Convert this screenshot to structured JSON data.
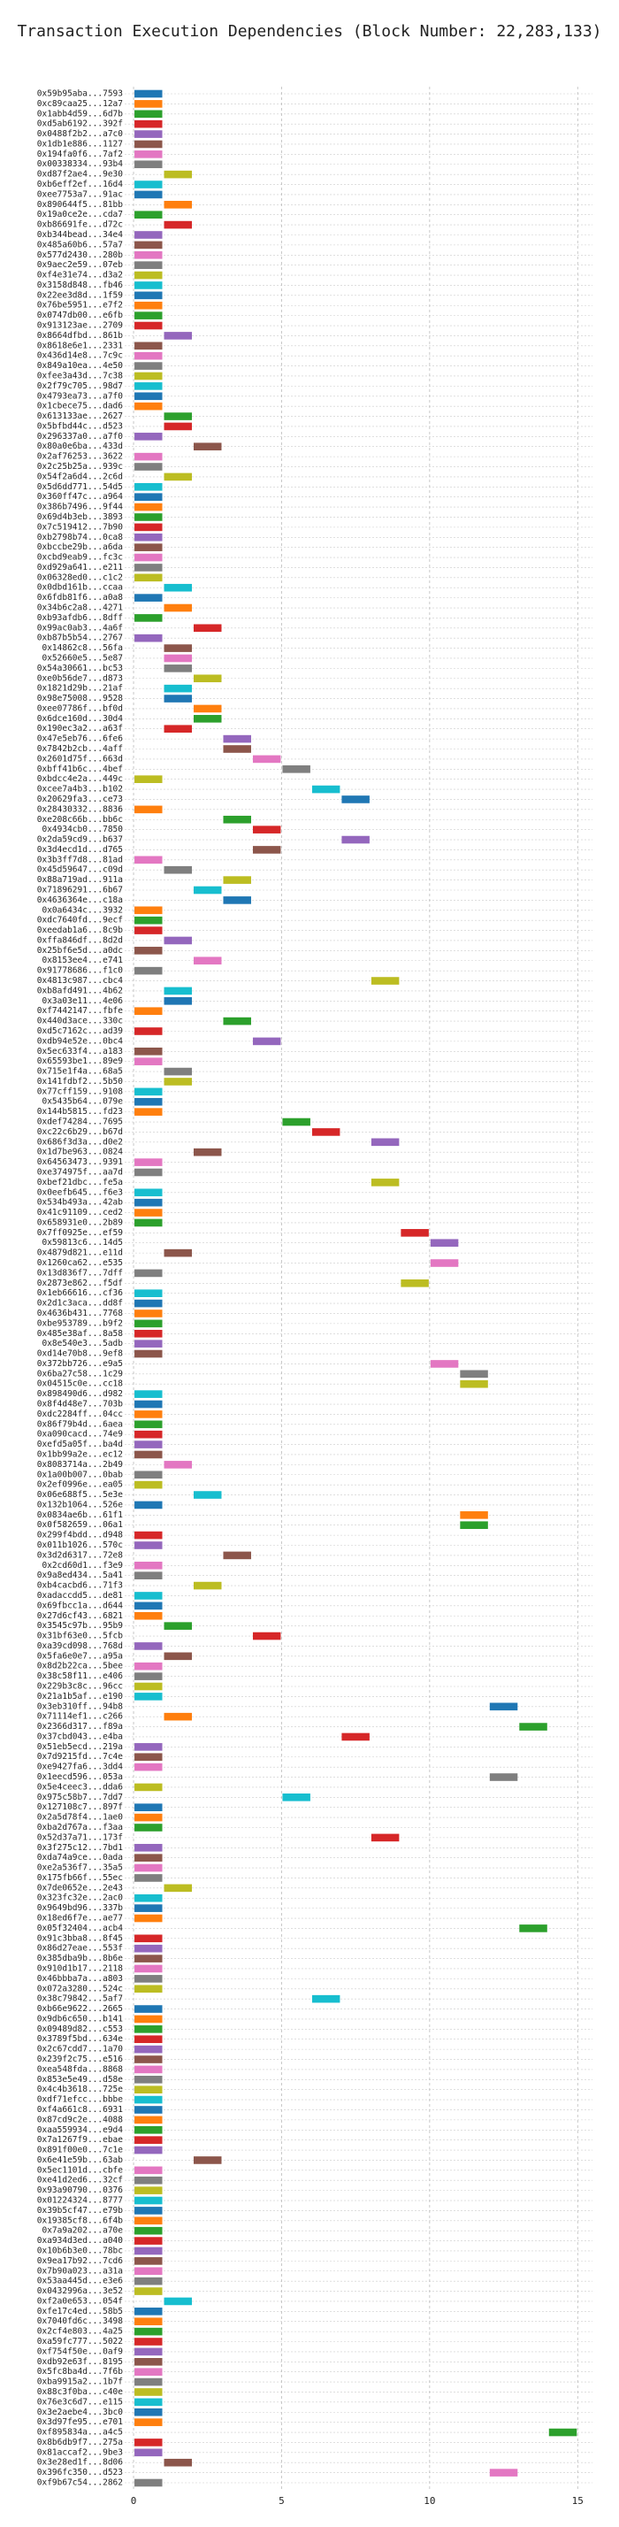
{
  "chart_data": {
    "type": "gantt",
    "title": "Transaction Execution Dependencies (Block Number: 22,283,133)",
    "categories": [
      "0x59b95aba...7593",
      "0xc89caa25...12a7",
      "0x1abb4d59...6d7b",
      "0xd5ab6192...392f",
      "0x0488f2b2...a7c0",
      "0x1db1e886...1127",
      "0x194fa0f6...7af2",
      "0x00338334...93b4",
      "0xd87f2ae4...9e30",
      "0xb6eff2ef...16d4",
      "0xee7753a7...91ac",
      "0x890644f5...81bb",
      "0x19a0ce2e...cda7",
      "0xb86691fe...d72c",
      "0xb344bead...34e4",
      "0x485a60b6...57a7",
      "0x577d2430...280b",
      "0x9aec2e59...07eb",
      "0xf4e31e74...d3a2",
      "0x3158d848...fb46",
      "0x22ee3d8d...1f59",
      "0x76be5951...e7f2",
      "0x0747db00...e6fb",
      "0x913123ae...2709",
      "0x8664dfbd...861b",
      "0x8618e6e1...2331",
      "0x436d14e8...7c9c",
      "0x849a10ea...4e50",
      "0xfee3a43d...7c38",
      "0x2f79c705...98d7",
      "0x4793ea73...a7f0",
      "0x1cbece75...dad6",
      "0x613133ae...2627",
      "0x5bfbd44c...d523",
      "0x296337a0...a7f0",
      "0x80a0e6ba...433d",
      "0x2af76253...3622",
      "0x2c25b25a...939c",
      "0x54f2a6d4...2c6d",
      "0x5d6dd771...54d5",
      "0x360ff47c...a964",
      "0x386b7496...9f44",
      "0x69d4b3eb...3893",
      "0x7c519412...7b90",
      "0xb2798b74...0ca8",
      "0xbccbe29b...a6da",
      "0xcbd9eab9...fc3c",
      "0xd929a641...e211",
      "0x06328ed0...c1c2",
      "0x0dbd161b...ccaa",
      "0x6fdb81f6...a0a8",
      "0x34b6c2a8...4271",
      "0xb93afdb6...8dff",
      "0x99ac0ab3...4a6f",
      "0xb87b5b54...2767",
      "0x14862c8...56fa",
      "0x52660e5...5e87",
      "0x54a30661...bc53",
      "0xe0b56de7...d873",
      "0x1821d29b...21af",
      "0x98e75008...9528",
      "0xee07786f...bf0d",
      "0x6dce160d...30d4",
      "0x190ec3a2...a63f",
      "0x47e5eb76...6fe6",
      "0x7842b2cb...4aff",
      "0x2601d75f...663d",
      "0xbff41b6c...4bef",
      "0xbdcc4e2a...449c",
      "0xcee7a4b3...b102",
      "0x20629fa3...ce73",
      "0x28430332...8836",
      "0xe208c66b...bb6c",
      "0x4934cb0...7850",
      "0x2da59cd9...b637",
      "0x3d4ecd1d...d765",
      "0x3b3ff7d8...81ad",
      "0x45d59647...c09d",
      "0x88a719ad...911a",
      "0x71896291...6b67",
      "0x4636364e...c18a",
      "0x0a6434c...3932",
      "0xdc7640fd...9ecf",
      "0xeedab1a6...8c9b",
      "0xffa846df...8d2d",
      "0x25bf6e5d...a0dc",
      "0x8153ee4...e741",
      "0x91778686...f1c0",
      "0x4813c987...cbc4",
      "0xb8afd491...4b62",
      "0x3a03e11...4e06",
      "0xf7442147...fbfe",
      "0x440d3ace...330c",
      "0xd5c7162c...ad39",
      "0xdb94e52e...0bc4",
      "0x5ec633f4...a183",
      "0x65593be1...89e9",
      "0x715e1f4a...68a5",
      "0x141fdbf2...5b50",
      "0x77cff159...9108",
      "0x5435b64...079e",
      "0x144b5815...fd23",
      "0xdef74284...7695",
      "0xc22c6b29...b67d",
      "0x686f3d3a...d0e2",
      "0x1d7be963...0824",
      "0x64563473...9391",
      "0xe374975f...aa7d",
      "0xbef21dbc...fe5a",
      "0x0eefb645...f6e3",
      "0x534b493a...42ab",
      "0x41c91109...ced2",
      "0x658931e0...2b89",
      "0x7ff0925e...ef59",
      "0x59813c6...14d5",
      "0x4879d821...e11d",
      "0x1260ca62...e535",
      "0x13d836f7...7dff",
      "0x2873e862...f5df",
      "0x1eb66616...cf36",
      "0x2d1c3aca...dd8f",
      "0x4636b431...7768",
      "0xbe953789...b9f2",
      "0x485e38af...8a58",
      "0x8e540e3...5adb",
      "0xd14e70b8...9ef8",
      "0x372bb726...e9a5",
      "0x6ba27c58...1c29",
      "0x04515c0e...cc18",
      "0x898490d6...d982",
      "0x8f4d48e7...703b",
      "0xdc2284ff...04cc",
      "0x86f79b4d...6aea",
      "0xa090cacd...74e9",
      "0xefd5a05f...ba4d",
      "0x1bb99a2e...ec12",
      "0x8083714a...2b49",
      "0x1a00b007...0bab",
      "0x2ef0996e...ea05",
      "0x06e688f5...5e3e",
      "0x132b1064...526e",
      "0x0834ae6b...61f1",
      "0x0f582659...06a1",
      "0x299f4bdd...d948",
      "0x011b1026...570c",
      "0x3d2d6317...72e8",
      "0x2cd60d1...f3e9",
      "0x9a8ed434...5a41",
      "0xb4cacbd6...71f3",
      "0xadaccdd5...de81",
      "0x69fbcc1a...d644",
      "0x27d6cf43...6821",
      "0x3545c97b...95b9",
      "0x31bf63e0...5fcb",
      "0xa39cd098...768d",
      "0x5fa6e0e7...a95a",
      "0x8d2b22ca...5bee",
      "0x38c58f11...e406",
      "0x229b3c8c...96cc",
      "0x21a1b5af...e190",
      "0x3eb310ff...94b8",
      "0x71114ef1...c266",
      "0x2366d317...f89a",
      "0x37cbd043...e4ba",
      "0x51eb5ecd...219a",
      "0x7d9215fd...7c4e",
      "0xe9427fa6...3dd4",
      "0x1eecd596...053a",
      "0x5e4ceec3...dda6",
      "0x975c58b7...7dd7",
      "0x127108c7...897f",
      "0x2a5d78f4...1ae0",
      "0xba2d767a...f3aa",
      "0x52d37a71...173f",
      "0x3f275c12...7bd1",
      "0xda74a9ce...0ada",
      "0xe2a536f7...35a5",
      "0x175fb66f...55ec",
      "0x7de0652e...2e43",
      "0x323fc32e...2ac0",
      "0x9649bd96...337b",
      "0x18ed6f7e...ae77",
      "0x05f32404...acb4",
      "0x91c3bba8...8f45",
      "0x86d27eae...553f",
      "0x385dba9b...8b6e",
      "0x910d1b17...2118",
      "0x46bbba7a...a803",
      "0x072a3280...524c",
      "0x38c79842...5af7",
      "0xb66e9622...2665",
      "0x9db6c650...b141",
      "0x09489d82...c553",
      "0x3789f5bd...634e",
      "0x2c67cdd7...1a70",
      "0x239f2c75...e516",
      "0xea548fda...8868",
      "0x853e5e49...d58e",
      "0x4c4b3618...725e",
      "0xdf71efcc...bbbe",
      "0xf4a661c8...6931",
      "0x87cd9c2e...4088",
      "0xaa559934...e9d4",
      "0x7a1267f9...ebae",
      "0x891f00e0...7c1e",
      "0x6e41e59b...63ab",
      "0x5ec1101d...cbfe",
      "0xe41d2ed6...32cf",
      "0x93a90790...0376",
      "0x01224324...8777",
      "0x39b5cf47...e79b",
      "0x19385cf8...6f4b",
      "0x7a9a202...a70e",
      "0xa934d3ed...a040",
      "0x10b6b3e0...78bc",
      "0x9ea17b92...7cd6",
      "0x7b90a023...a31a",
      "0x53aa445d...e3e6",
      "0x0432996a...3e52",
      "0xf2a0e653...054f",
      "0xfe17c4ed...58b5",
      "0x7040fd6c...3498",
      "0x2cf4e803...4a25",
      "0xa59fc777...5022",
      "0xf754f50e...0af9",
      "0xdb92e63f...8195",
      "0x5fc8ba4d...7f6b",
      "0xba9915a2...1b7f",
      "0x88c3f0ba...c40e",
      "0x76e3c6d7...e115",
      "0x3e2aebe4...3bc0",
      "0x3d97fe95...e701",
      "0xf895834a...a4c5",
      "0x8b6db9f7...275a",
      "0x81accaf2...9be3",
      "0x3e28ed1f...8d06",
      "0x396fc350...d523",
      "0xf9b67c54...2862"
    ],
    "start": [
      0,
      0,
      0,
      0,
      0,
      0,
      0,
      0,
      1,
      0,
      0,
      1,
      0,
      1,
      0,
      0,
      0,
      0,
      0,
      0,
      0,
      0,
      0,
      0,
      1,
      0,
      0,
      0,
      0,
      0,
      0,
      0,
      1,
      1,
      0,
      2,
      0,
      0,
      1,
      0,
      0,
      0,
      0,
      0,
      0,
      0,
      0,
      0,
      0,
      1,
      0,
      1,
      0,
      2,
      0,
      1,
      1,
      1,
      2,
      1,
      1,
      2,
      2,
      1,
      3,
      3,
      4,
      5,
      0,
      6,
      7,
      0,
      3,
      4,
      7,
      4,
      0,
      1,
      3,
      2,
      3,
      0,
      0,
      0,
      1,
      0,
      2,
      0,
      8,
      1,
      1,
      0,
      3,
      0,
      4,
      0,
      0,
      1,
      1,
      0,
      0,
      0,
      5,
      6,
      8,
      2,
      0,
      0,
      8,
      0,
      0,
      0,
      0,
      9,
      10,
      1,
      10,
      0,
      9,
      0,
      0,
      0,
      0,
      0,
      0,
      0,
      10,
      11,
      11,
      0,
      0,
      0,
      0,
      0,
      0,
      0,
      1,
      0,
      0,
      2,
      0,
      11,
      11,
      0,
      0,
      3,
      0,
      0,
      2,
      0,
      0,
      0,
      1,
      4,
      0,
      1,
      0,
      0,
      0,
      0,
      12,
      1,
      13,
      7,
      0,
      0,
      0,
      12,
      0,
      5,
      0,
      0,
      0,
      8,
      0,
      0,
      0,
      0,
      1,
      0,
      0,
      0,
      13,
      0,
      0,
      0,
      0,
      0,
      0,
      6,
      0,
      0,
      0,
      0,
      0,
      0,
      0,
      0,
      0,
      0,
      0,
      0,
      0,
      0,
      0,
      2,
      0,
      0,
      0,
      0,
      0,
      0,
      0,
      0,
      0,
      0,
      0,
      0,
      0,
      1,
      0,
      0,
      0,
      0,
      0,
      0,
      0,
      0,
      0,
      0,
      0,
      0,
      14,
      0,
      0,
      1,
      12,
      0
    ],
    "end": [
      1,
      1,
      1,
      1,
      1,
      1,
      1,
      1,
      2,
      1,
      1,
      2,
      1,
      2,
      1,
      1,
      1,
      1,
      1,
      1,
      1,
      1,
      1,
      1,
      2,
      1,
      1,
      1,
      1,
      1,
      1,
      1,
      2,
      2,
      1,
      3,
      1,
      1,
      2,
      1,
      1,
      1,
      1,
      1,
      1,
      1,
      1,
      1,
      1,
      2,
      1,
      2,
      1,
      3,
      1,
      2,
      2,
      2,
      3,
      2,
      2,
      3,
      3,
      2,
      4,
      4,
      5,
      6,
      1,
      7,
      8,
      1,
      4,
      5,
      8,
      5,
      1,
      2,
      4,
      3,
      4,
      1,
      1,
      1,
      2,
      1,
      3,
      1,
      9,
      2,
      2,
      1,
      4,
      1,
      5,
      1,
      1,
      2,
      2,
      1,
      1,
      1,
      6,
      7,
      9,
      3,
      1,
      1,
      9,
      1,
      1,
      1,
      1,
      10,
      11,
      2,
      11,
      1,
      10,
      1,
      1,
      1,
      1,
      1,
      1,
      1,
      11,
      12,
      12,
      1,
      1,
      1,
      1,
      1,
      1,
      1,
      2,
      1,
      1,
      3,
      1,
      12,
      12,
      1,
      1,
      4,
      1,
      1,
      3,
      1,
      1,
      1,
      2,
      5,
      1,
      2,
      1,
      1,
      1,
      1,
      13,
      2,
      14,
      8,
      1,
      1,
      1,
      13,
      1,
      6,
      1,
      1,
      1,
      9,
      1,
      1,
      1,
      1,
      2,
      1,
      1,
      1,
      14,
      1,
      1,
      1,
      1,
      1,
      1,
      7,
      1,
      1,
      1,
      1,
      1,
      1,
      1,
      1,
      1,
      1,
      1,
      1,
      1,
      1,
      1,
      3,
      1,
      1,
      1,
      1,
      1,
      1,
      1,
      1,
      1,
      1,
      1,
      1,
      1,
      2,
      1,
      1,
      1,
      1,
      1,
      1,
      1,
      1,
      1,
      1,
      1,
      1,
      15,
      1,
      1,
      2,
      13,
      1
    ],
    "colors": [
      "#1f77b4",
      "#ff7f0e",
      "#2ca02c",
      "#d62728",
      "#9467bd",
      "#8c564b",
      "#e377c2",
      "#7f7f7f",
      "#bcbd22",
      "#17becf"
    ],
    "xlim": [
      -0.3,
      15.5
    ],
    "xticks": [
      0,
      5,
      10,
      15
    ],
    "grid": true
  }
}
